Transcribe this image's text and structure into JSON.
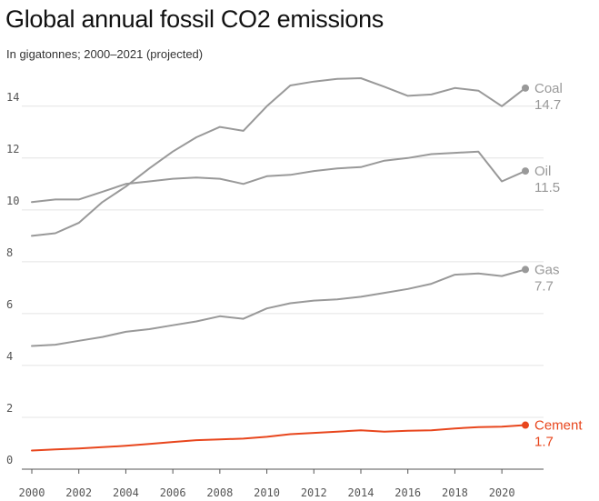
{
  "title": "Global annual fossil CO2 emissions",
  "subtitle": "In gigatonnes; 2000–2021 (projected)",
  "chart_data": {
    "type": "line",
    "x": [
      2000,
      2001,
      2002,
      2003,
      2004,
      2005,
      2006,
      2007,
      2008,
      2009,
      2010,
      2011,
      2012,
      2013,
      2014,
      2015,
      2016,
      2017,
      2018,
      2019,
      2020,
      2021
    ],
    "xlim": [
      2000,
      2021
    ],
    "ylim": [
      0,
      15.5
    ],
    "yticks": [
      0,
      2,
      4,
      6,
      8,
      10,
      12,
      14
    ],
    "xticks": [
      2000,
      2002,
      2004,
      2006,
      2008,
      2010,
      2012,
      2014,
      2016,
      2018,
      2020
    ],
    "grid": true,
    "legend": "end-of-line labels",
    "series": [
      {
        "name": "Coal",
        "end_label": "14.7",
        "color": "#999999",
        "values": [
          9.0,
          9.1,
          9.5,
          10.3,
          10.9,
          11.6,
          12.25,
          12.8,
          13.2,
          13.05,
          14.0,
          14.8,
          14.95,
          15.05,
          15.08,
          14.75,
          14.4,
          14.45,
          14.7,
          14.6,
          14.0,
          14.7
        ]
      },
      {
        "name": "Oil",
        "end_label": "11.5",
        "color": "#999999",
        "values": [
          10.3,
          10.4,
          10.4,
          10.7,
          11.0,
          11.1,
          11.2,
          11.25,
          11.2,
          11.0,
          11.3,
          11.35,
          11.5,
          11.6,
          11.65,
          11.9,
          12.0,
          12.15,
          12.2,
          12.25,
          11.1,
          11.5
        ]
      },
      {
        "name": "Gas",
        "end_label": "7.7",
        "color": "#999999",
        "values": [
          4.75,
          4.8,
          4.95,
          5.1,
          5.3,
          5.4,
          5.55,
          5.7,
          5.9,
          5.8,
          6.2,
          6.4,
          6.5,
          6.55,
          6.65,
          6.8,
          6.95,
          7.15,
          7.5,
          7.55,
          7.45,
          7.7
        ]
      },
      {
        "name": "Cement",
        "end_label": "1.7",
        "color": "#e8461d",
        "values": [
          0.72,
          0.76,
          0.8,
          0.85,
          0.9,
          0.97,
          1.05,
          1.12,
          1.15,
          1.18,
          1.25,
          1.35,
          1.4,
          1.45,
          1.5,
          1.45,
          1.48,
          1.5,
          1.57,
          1.62,
          1.64,
          1.7
        ]
      }
    ]
  }
}
